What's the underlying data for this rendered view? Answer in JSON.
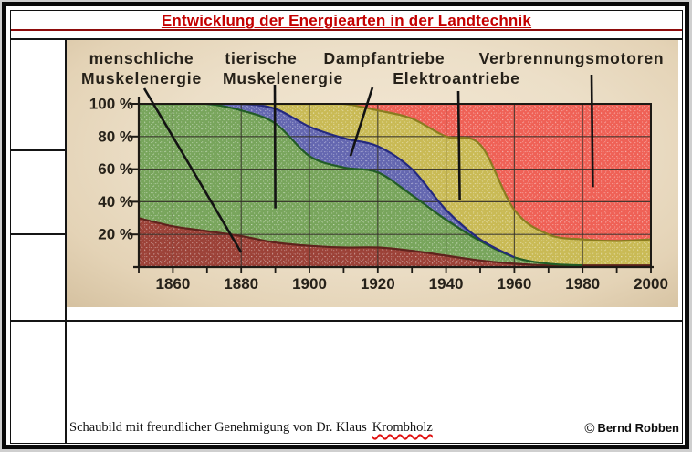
{
  "page": {
    "title": "Entwicklung der Energiearten in der Landtechnik",
    "caption_text": "Schaubild mit freundlicher Genehmigung von Dr. Klaus",
    "caption_marked_word": "Krombholz",
    "copyright_symbol": "©",
    "copyright_name": "Bernd Robben"
  },
  "chart_data": {
    "type": "area",
    "stacked": true,
    "unit": "%",
    "grid": true,
    "xlim": [
      1850,
      2000
    ],
    "ylim": [
      0,
      100
    ],
    "x": [
      1850,
      1860,
      1870,
      1880,
      1890,
      1900,
      1910,
      1920,
      1930,
      1940,
      1950,
      1960,
      1970,
      1980,
      1990,
      2000
    ],
    "x_tick_labels": [
      "1860",
      "1880",
      "1900",
      "1920",
      "1940",
      "1960",
      "1980",
      "2000"
    ],
    "y_tick_labels": [
      "100 %",
      "80 %",
      "60 %",
      "40 %",
      "20 %"
    ],
    "series": [
      {
        "name": "menschliche Muskelenergie",
        "label_line1": "menschliche",
        "label_line2": "Muskelenergie",
        "color": "#9c4238",
        "edge": "#5f231d",
        "values": [
          30,
          25,
          22,
          19,
          15,
          13,
          12,
          12,
          10,
          7,
          4,
          2,
          1,
          1,
          1,
          1
        ]
      },
      {
        "name": "tierische Muskelenergie",
        "label_line1": "tierische",
        "label_line2": "Muskelenergie",
        "color": "#78a55c",
        "edge": "#225c26",
        "values": [
          70,
          75,
          78,
          77,
          73,
          55,
          49,
          46,
          34,
          22,
          12,
          4,
          1,
          0,
          0,
          0
        ]
      },
      {
        "name": "Dampfantriebe",
        "label_line1": "Dampfantriebe",
        "label_line2": "",
        "color": "#6467b0",
        "edge": "#24297f",
        "values": [
          0,
          0,
          0,
          4,
          9,
          18,
          18,
          16,
          16,
          6,
          1,
          0,
          0,
          0,
          0,
          0
        ]
      },
      {
        "name": "Elektroantriebe",
        "label_line1": "",
        "label_line2": "Elektroantriebe",
        "color": "#c9ba55",
        "edge": "#8a7c20",
        "values": [
          0,
          0,
          0,
          0,
          3,
          14,
          21,
          22,
          31,
          45,
          58,
          29,
          18,
          16,
          15,
          16
        ]
      },
      {
        "name": "Verbrennungsmotoren",
        "label_line1": "Verbrennungsmotoren",
        "label_line2": "",
        "color": "#ef6156",
        "edge": "#c03028",
        "values": [
          0,
          0,
          0,
          0,
          0,
          0,
          0,
          4,
          9,
          20,
          25,
          65,
          80,
          83,
          84,
          83
        ]
      }
    ],
    "annotations": [
      {
        "series": "menschliche Muskelenergie",
        "year": 1880,
        "pct": 9
      },
      {
        "series": "tierische Muskelenergie",
        "year": 1890,
        "pct": 36
      },
      {
        "series": "Dampfantriebe",
        "year": 1912,
        "pct": 68
      },
      {
        "series": "Elektroantriebe",
        "year": 1944,
        "pct": 41
      },
      {
        "series": "Verbrennungsmotoren",
        "year": 1983,
        "pct": 49
      }
    ]
  }
}
